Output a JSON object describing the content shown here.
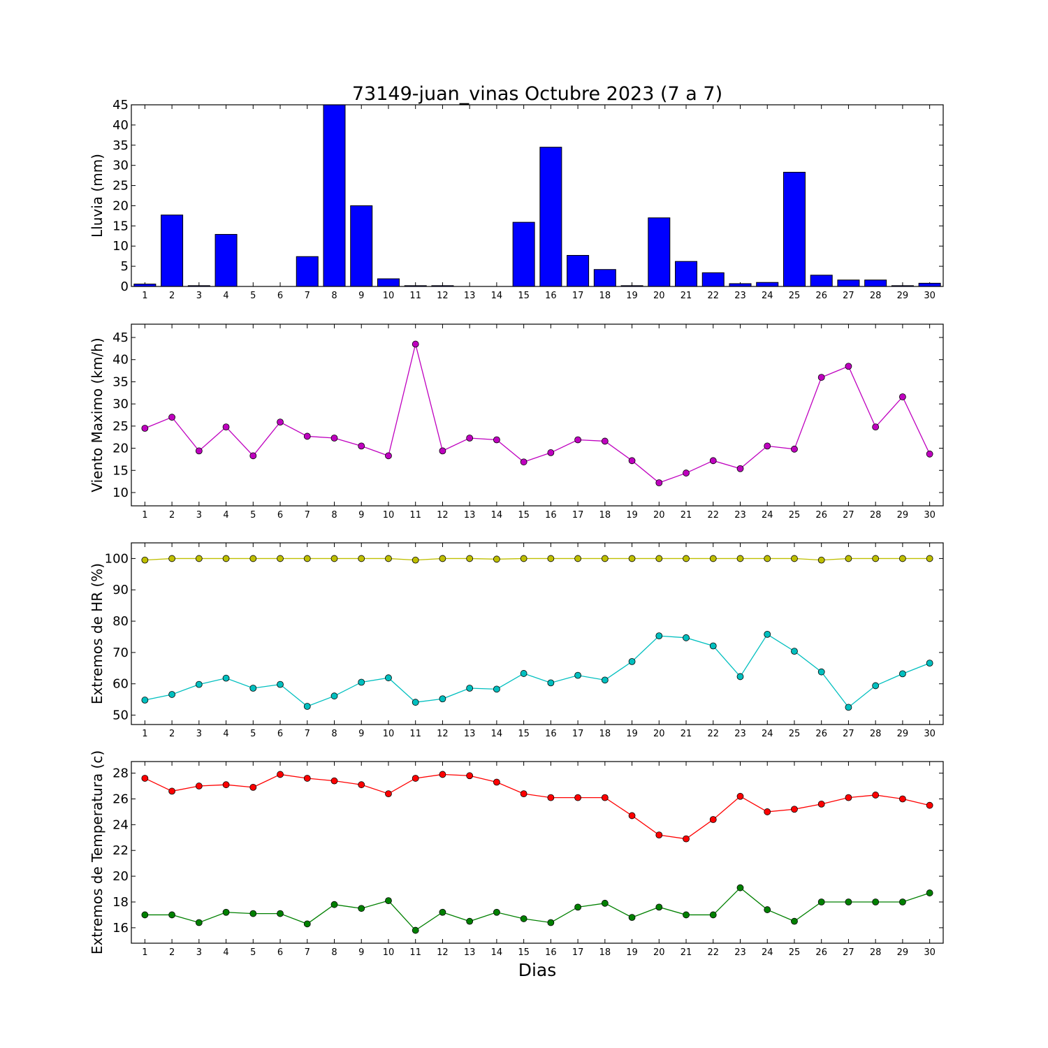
{
  "title": "73149-juan_vinas Octubre 2023  (7 a 7)",
  "xlabel": "Dias",
  "chart_data": [
    {
      "type": "bar",
      "ylabel": "Lluvia (mm)",
      "ylim": [
        0,
        45
      ],
      "yticks": [
        0,
        5,
        10,
        15,
        20,
        25,
        30,
        35,
        40,
        45
      ],
      "x": [
        1,
        2,
        3,
        4,
        5,
        6,
        7,
        8,
        9,
        10,
        11,
        12,
        13,
        14,
        15,
        16,
        17,
        18,
        19,
        20,
        21,
        22,
        23,
        24,
        25,
        26,
        27,
        28,
        29,
        30
      ],
      "series": [
        {
          "color": "#0000ff",
          "values": [
            0.6,
            17.7,
            0.2,
            12.9,
            0,
            0,
            7.4,
            45.0,
            20.0,
            1.9,
            0.2,
            0.2,
            0,
            0,
            15.9,
            34.5,
            7.7,
            4.2,
            0.2,
            17.0,
            6.2,
            3.4,
            0.7,
            1.0,
            28.3,
            2.8,
            1.6,
            1.6,
            0.2,
            0.8
          ]
        }
      ]
    },
    {
      "type": "line",
      "ylabel": "Viento Maximo (km/h)",
      "ylim": [
        7,
        48
      ],
      "yticks": [
        10,
        15,
        20,
        25,
        30,
        35,
        40,
        45
      ],
      "x": [
        1,
        2,
        3,
        4,
        5,
        6,
        7,
        8,
        9,
        10,
        11,
        12,
        13,
        14,
        15,
        16,
        17,
        18,
        19,
        20,
        21,
        22,
        23,
        24,
        25,
        26,
        27,
        28,
        29,
        30
      ],
      "series": [
        {
          "color": "#bf00bf",
          "values": [
            24.5,
            27.0,
            19.4,
            24.8,
            18.3,
            25.9,
            22.7,
            22.3,
            20.5,
            18.3,
            43.5,
            19.4,
            22.3,
            21.9,
            16.9,
            19.0,
            21.9,
            21.6,
            17.2,
            12.2,
            14.4,
            17.2,
            15.4,
            20.5,
            19.8,
            36.0,
            38.5,
            24.8,
            31.6,
            18.7
          ]
        }
      ]
    },
    {
      "type": "line",
      "ylabel": "Extremos de HR (%)",
      "ylim": [
        47,
        105
      ],
      "yticks": [
        50,
        60,
        70,
        80,
        90,
        100
      ],
      "x": [
        1,
        2,
        3,
        4,
        5,
        6,
        7,
        8,
        9,
        10,
        11,
        12,
        13,
        14,
        15,
        16,
        17,
        18,
        19,
        20,
        21,
        22,
        23,
        24,
        25,
        26,
        27,
        28,
        29,
        30
      ],
      "series": [
        {
          "color": "#bfbf00",
          "values": [
            99.5,
            100,
            100,
            100,
            100,
            100,
            100,
            100,
            100,
            100,
            99.5,
            100,
            100,
            99.8,
            100,
            100,
            100,
            100,
            100,
            100,
            100,
            100,
            100,
            100,
            100,
            99.5,
            100,
            100,
            100,
            100
          ]
        },
        {
          "color": "#00bfbf",
          "values": [
            54.8,
            56.6,
            59.8,
            61.8,
            58.6,
            59.8,
            52.8,
            56.1,
            60.5,
            61.9,
            54.1,
            55.2,
            58.6,
            58.3,
            63.3,
            60.3,
            62.7,
            61.2,
            67.1,
            75.3,
            74.7,
            72.1,
            62.3,
            75.8,
            70.4,
            63.8,
            52.5,
            59.4,
            63.2,
            66.6
          ]
        }
      ]
    },
    {
      "type": "line",
      "ylabel": "Extremos de Temperatura (c)",
      "ylim": [
        14.8,
        28.9
      ],
      "yticks": [
        16,
        18,
        20,
        22,
        24,
        26,
        28
      ],
      "x": [
        1,
        2,
        3,
        4,
        5,
        6,
        7,
        8,
        9,
        10,
        11,
        12,
        13,
        14,
        15,
        16,
        17,
        18,
        19,
        20,
        21,
        22,
        23,
        24,
        25,
        26,
        27,
        28,
        29,
        30
      ],
      "series": [
        {
          "color": "#ff0000",
          "values": [
            27.6,
            26.6,
            27.0,
            27.1,
            26.9,
            27.9,
            27.6,
            27.4,
            27.1,
            26.4,
            27.6,
            27.9,
            27.8,
            27.3,
            26.4,
            26.1,
            26.1,
            26.1,
            24.7,
            23.2,
            22.9,
            24.4,
            26.2,
            25.0,
            25.2,
            25.6,
            26.1,
            26.3,
            26.0,
            25.5
          ]
        },
        {
          "color": "#008000",
          "values": [
            17.0,
            17.0,
            16.4,
            17.2,
            17.1,
            17.1,
            16.3,
            17.8,
            17.5,
            18.1,
            15.8,
            17.2,
            16.5,
            17.2,
            16.7,
            16.4,
            17.6,
            17.9,
            16.8,
            17.6,
            17.0,
            17.0,
            19.1,
            17.4,
            16.5,
            18.0,
            18.0,
            18.0,
            18.0,
            18.7
          ]
        }
      ]
    }
  ]
}
